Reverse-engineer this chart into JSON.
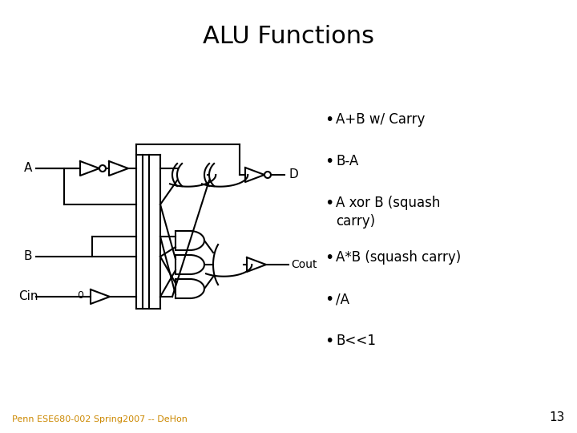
{
  "title": "ALU Functions",
  "title_fontsize": 22,
  "title_fontweight": "normal",
  "bullet_items": [
    "A+B w/ Carry",
    "B-A",
    "A xor B (squash\ncarry)",
    "A*B (squash carry)",
    "/A",
    "B<<1"
  ],
  "bullet_fontsize": 12,
  "footer_text": "Penn ESE680-002 Spring2007 -- DeHon",
  "page_number": "13",
  "bg_color": "#ffffff",
  "text_color": "#000000",
  "footer_color": "#cc8800"
}
